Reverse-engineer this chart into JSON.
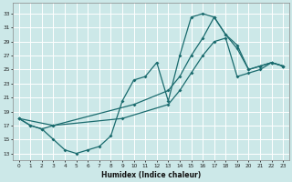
{
  "xlabel": "Humidex (Indice chaleur)",
  "bg_color": "#cce8e8",
  "line_color": "#1a6b6e",
  "grid_color": "#ffffff",
  "xlim": [
    -0.5,
    23.5
  ],
  "ylim": [
    12,
    34.5
  ],
  "yticks": [
    13,
    15,
    17,
    19,
    21,
    23,
    25,
    27,
    29,
    31,
    33
  ],
  "xticks": [
    0,
    1,
    2,
    3,
    4,
    5,
    6,
    7,
    8,
    9,
    10,
    11,
    12,
    13,
    14,
    15,
    16,
    17,
    18,
    19,
    20,
    21,
    22,
    23
  ],
  "curve1_x": [
    0,
    1,
    2,
    3,
    4,
    5,
    6,
    7,
    8,
    9,
    10,
    11,
    12,
    13,
    14,
    15,
    16,
    17,
    18,
    19,
    20,
    21,
    22,
    23
  ],
  "curve1_y": [
    18.0,
    17.0,
    16.5,
    15.0,
    13.5,
    13.0,
    13.5,
    14.0,
    15.5,
    20.5,
    23.5,
    24.0,
    26.0,
    20.5,
    27.0,
    32.5,
    33.0,
    32.5,
    30.0,
    28.5,
    25.0,
    25.5,
    26.0,
    25.5
  ],
  "curve2_x": [
    0,
    1,
    2,
    3,
    10,
    13,
    14,
    15,
    16,
    17,
    18,
    19,
    20,
    21,
    22,
    23
  ],
  "curve2_y": [
    18.0,
    17.0,
    16.5,
    17.0,
    20.0,
    22.0,
    24.0,
    27.0,
    29.5,
    32.5,
    30.0,
    28.0,
    25.0,
    25.5,
    26.0,
    25.5
  ],
  "curve3_x": [
    0,
    3,
    9,
    13,
    14,
    15,
    16,
    17,
    18,
    19,
    20,
    21,
    22,
    23
  ],
  "curve3_y": [
    18.0,
    17.0,
    18.0,
    20.0,
    22.0,
    24.5,
    27.0,
    29.0,
    29.5,
    24.0,
    24.5,
    25.0,
    26.0,
    25.5
  ]
}
